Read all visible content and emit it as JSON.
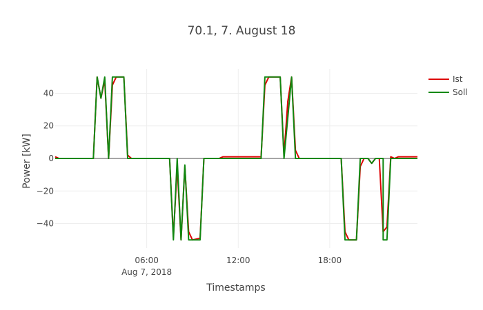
{
  "chart_data": {
    "type": "line",
    "title": "70.1, 7. August 18",
    "xlabel": "Timestamps",
    "ylabel": "Power [kW]",
    "x_range_hours": [
      0.0,
      23.75
    ],
    "ylim": [
      -55,
      55
    ],
    "y_ticks": [
      -40,
      -20,
      0,
      20,
      40
    ],
    "y_tick_labels": [
      "−40",
      "−20",
      "0",
      "20",
      "40"
    ],
    "x_ticks": [
      {
        "hour": 6,
        "label": "06:00",
        "sublabel": "Aug 7, 2018"
      },
      {
        "hour": 12,
        "label": "12:00",
        "sublabel": ""
      },
      {
        "hour": 18,
        "label": "18:00",
        "sublabel": ""
      }
    ],
    "grid": true,
    "legend_position": "top-right",
    "series": [
      {
        "name": "Ist",
        "color": "#dd0000",
        "points": [
          [
            0.0,
            1
          ],
          [
            0.25,
            0
          ],
          [
            2.5,
            0
          ],
          [
            2.75,
            50
          ],
          [
            3.0,
            37
          ],
          [
            3.25,
            48
          ],
          [
            3.5,
            0
          ],
          [
            3.75,
            45
          ],
          [
            4.0,
            50
          ],
          [
            4.5,
            50
          ],
          [
            4.75,
            2
          ],
          [
            5.0,
            0
          ],
          [
            7.5,
            0
          ],
          [
            7.75,
            -48
          ],
          [
            8.0,
            -5
          ],
          [
            8.25,
            -50
          ],
          [
            8.5,
            -5
          ],
          [
            8.75,
            -45
          ],
          [
            9.0,
            -50
          ],
          [
            9.5,
            -49
          ],
          [
            9.75,
            0
          ],
          [
            10.75,
            0
          ],
          [
            11.0,
            1
          ],
          [
            13.5,
            1
          ],
          [
            13.75,
            45
          ],
          [
            14.0,
            50
          ],
          [
            14.75,
            50
          ],
          [
            15.0,
            2
          ],
          [
            15.25,
            35
          ],
          [
            15.5,
            50
          ],
          [
            15.75,
            5
          ],
          [
            16.0,
            0
          ],
          [
            18.75,
            0
          ],
          [
            19.0,
            -45
          ],
          [
            19.25,
            -50
          ],
          [
            19.75,
            -50
          ],
          [
            20.0,
            -5
          ],
          [
            20.25,
            0
          ],
          [
            20.5,
            0
          ],
          [
            20.75,
            -3
          ],
          [
            21.0,
            0
          ],
          [
            21.25,
            0
          ],
          [
            21.5,
            -45
          ],
          [
            21.75,
            -42
          ],
          [
            22.0,
            1
          ],
          [
            22.25,
            0
          ],
          [
            22.5,
            1
          ],
          [
            23.75,
            1
          ]
        ]
      },
      {
        "name": "Soll",
        "color": "#118811",
        "points": [
          [
            0.0,
            0
          ],
          [
            2.5,
            0
          ],
          [
            2.75,
            50
          ],
          [
            3.0,
            37
          ],
          [
            3.25,
            50
          ],
          [
            3.5,
            0
          ],
          [
            3.75,
            50
          ],
          [
            4.5,
            50
          ],
          [
            4.75,
            0
          ],
          [
            7.5,
            0
          ],
          [
            7.75,
            -50
          ],
          [
            8.0,
            0
          ],
          [
            8.25,
            -50
          ],
          [
            8.5,
            -4
          ],
          [
            8.75,
            -50
          ],
          [
            9.5,
            -50
          ],
          [
            9.75,
            0
          ],
          [
            13.5,
            0
          ],
          [
            13.75,
            50
          ],
          [
            14.75,
            50
          ],
          [
            15.0,
            0
          ],
          [
            15.5,
            50
          ],
          [
            15.75,
            0
          ],
          [
            18.75,
            0
          ],
          [
            19.0,
            -50
          ],
          [
            19.75,
            -50
          ],
          [
            20.0,
            0
          ],
          [
            20.5,
            0
          ],
          [
            20.75,
            -3
          ],
          [
            21.0,
            0
          ],
          [
            21.5,
            0
          ],
          [
            21.5,
            -50
          ],
          [
            21.75,
            -50
          ],
          [
            22.0,
            0
          ],
          [
            23.75,
            0
          ]
        ]
      }
    ]
  }
}
